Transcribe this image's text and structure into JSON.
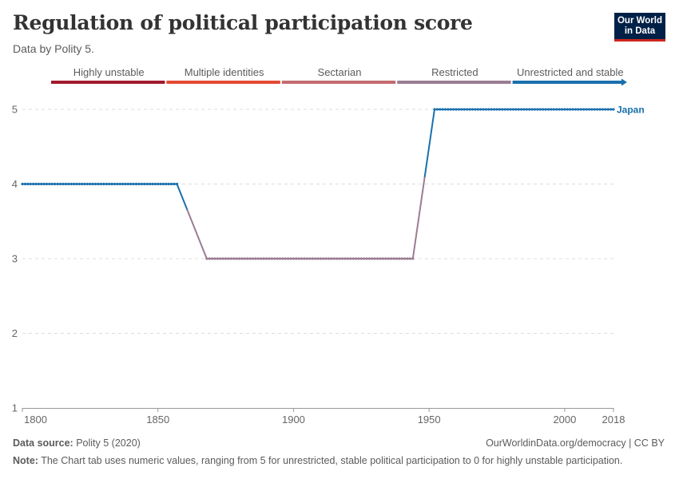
{
  "header": {
    "title": "Regulation of political participation score",
    "subtitle": "Data by Polity 5."
  },
  "logo": {
    "line1": "Our World",
    "line2": "in Data"
  },
  "footer": {
    "source_label": "Data source:",
    "source_text": "Polity 5 (2020)",
    "url": "OurWorldinData.org/democracy | CC BY",
    "note_label": "Note:",
    "note_text": "The Chart tab uses numeric values, ranging from 5 for unrestricted, stable political participation to 0 for highly unstable participation."
  },
  "colors": {
    "highly_unstable": "#a2192f",
    "multiple_identities": "#e34a33",
    "sectarian": "#c36b70",
    "restricted": "#9b7c91",
    "unrestricted": "#1a70ad",
    "grid": "#dddddd",
    "text": "#5b5b5b"
  },
  "chart_data": {
    "type": "line",
    "title": "Regulation of political participation score",
    "xlim": [
      1800,
      2018
    ],
    "ylim": [
      1,
      5
    ],
    "x_ticks": [
      1800,
      1850,
      1900,
      1950,
      2000,
      2018
    ],
    "y_ticks": [
      1,
      2,
      3,
      4,
      5
    ],
    "grid": "horizontal dashed",
    "legend": {
      "placement": "top",
      "entries": [
        "Highly unstable",
        "Multiple identities",
        "Sectarian",
        "Restricted",
        "Unrestricted and stable"
      ]
    },
    "series": [
      {
        "name": "Japan",
        "segments": [
          {
            "x_start": 1800,
            "x_end": 1857,
            "value": 4
          },
          {
            "x_start": 1868,
            "x_end": 1944,
            "value": 3
          },
          {
            "x_start": 1952,
            "x_end": 2018,
            "value": 5
          }
        ],
        "transitions": [
          {
            "from": [
              1857,
              4
            ],
            "to": [
              1868,
              3
            ]
          },
          {
            "from": [
              1944,
              3
            ],
            "to": [
              1952,
              5
            ]
          }
        ]
      }
    ]
  }
}
